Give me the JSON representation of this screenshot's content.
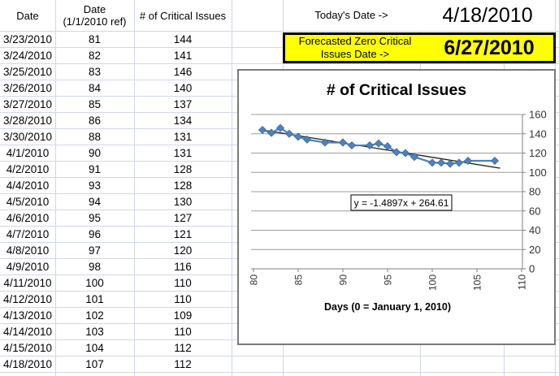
{
  "table": {
    "headers": [
      {
        "lines": [
          "Date"
        ]
      },
      {
        "lines": [
          "Date",
          "(1/1/2010 ref)"
        ]
      },
      {
        "lines": [
          "# of Critical Issues"
        ]
      }
    ],
    "rows": [
      [
        "3/23/2010",
        "81",
        "144"
      ],
      [
        "3/24/2010",
        "82",
        "141"
      ],
      [
        "3/25/2010",
        "83",
        "146"
      ],
      [
        "3/26/2010",
        "84",
        "140"
      ],
      [
        "3/27/2010",
        "85",
        "137"
      ],
      [
        "3/28/2010",
        "86",
        "134"
      ],
      [
        "3/30/2010",
        "88",
        "131"
      ],
      [
        "4/1/2010",
        "90",
        "131"
      ],
      [
        "4/2/2010",
        "91",
        "128"
      ],
      [
        "4/4/2010",
        "93",
        "128"
      ],
      [
        "4/5/2010",
        "94",
        "130"
      ],
      [
        "4/6/2010",
        "95",
        "127"
      ],
      [
        "4/7/2010",
        "96",
        "121"
      ],
      [
        "4/8/2010",
        "97",
        "120"
      ],
      [
        "4/9/2010",
        "98",
        "116"
      ],
      [
        "4/11/2010",
        "100",
        "110"
      ],
      [
        "4/12/2010",
        "101",
        "110"
      ],
      [
        "4/13/2010",
        "102",
        "109"
      ],
      [
        "4/14/2010",
        "103",
        "110"
      ],
      [
        "4/15/2010",
        "104",
        "112"
      ],
      [
        "4/18/2010",
        "107",
        "112"
      ]
    ]
  },
  "info": {
    "today_label": "Today's Date ->",
    "today_value": "4/18/2010",
    "forecast_label_line1": "Forecasted Zero Critical",
    "forecast_label_line2": "Issues Date ->",
    "forecast_value": "6/27/2010",
    "highlight_color": "#ffff00"
  },
  "chart_data": {
    "type": "scatter",
    "title": "# of Critical Issues",
    "xlabel": "Days (0 = January 1, 2010)",
    "ylabel": "",
    "x": [
      81,
      82,
      83,
      84,
      85,
      86,
      88,
      90,
      91,
      93,
      94,
      95,
      96,
      97,
      98,
      100,
      101,
      102,
      103,
      104,
      107
    ],
    "y": [
      144,
      141,
      146,
      140,
      137,
      134,
      131,
      131,
      128,
      128,
      130,
      127,
      121,
      120,
      116,
      110,
      110,
      109,
      110,
      112,
      112
    ],
    "xlim": [
      80,
      110
    ],
    "xstep": 5,
    "ylim": [
      0,
      160
    ],
    "ystep": 20,
    "grid": true,
    "legend": "none",
    "y_axis_side": "right",
    "x_tick_rotation": -90,
    "series_color": "#4f81bd",
    "marker": "diamond",
    "trendline": {
      "slope": -1.4897,
      "intercept": 264.61,
      "label": "y = -1.4897x + 264.61",
      "color": "#1a1a1a"
    }
  }
}
